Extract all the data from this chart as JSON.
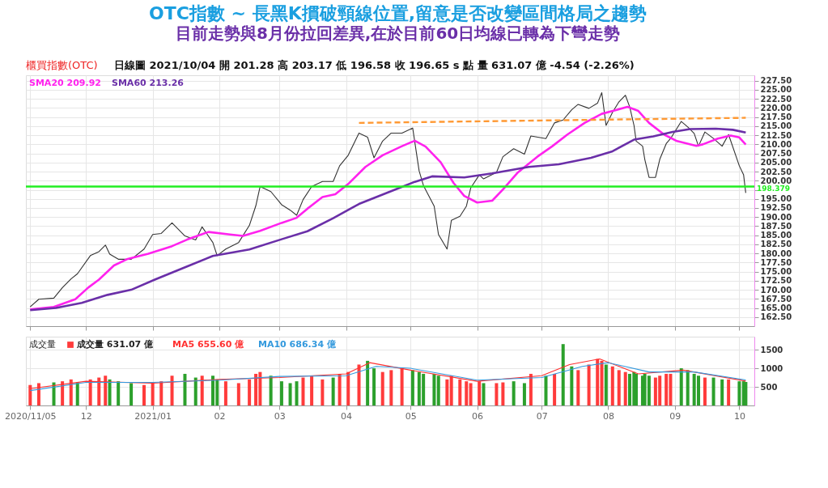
{
  "chart_data": [
    {
      "type": "line",
      "title": "OTC指數 ~ 長黑K摜破頸線位置,留意是否改變區間格局之趨勢",
      "subtitle": "目前走勢與8月份拉回差異,在於目前60日均線已轉為下彎走勢",
      "annotations": [
        "櫃買指數(OTC)",
        "日線圖 2021/10/04 開 201.28 高 203.17 低 196.58 收 196.65 s 點 量 631.07 億 -4.54 (-2.26%)"
      ],
      "xlim": [
        "2020-11-03",
        "2021-10-08"
      ],
      "xticks": [
        {
          "value": "2020-11-05",
          "label": null
        },
        {
          "value": "2020-12-01",
          "label": null
        },
        {
          "value": "2021-01-01",
          "label": null
        },
        {
          "value": "2021-02-01",
          "label": null
        },
        {
          "value": "2021-03-01",
          "label": null
        },
        {
          "value": "2021-04-01",
          "label": null
        },
        {
          "value": "2021-05-01",
          "label": null
        },
        {
          "value": "2021-06-01",
          "label": null
        },
        {
          "value": "2021-07-01",
          "label": null
        },
        {
          "value": "2021-08-01",
          "label": null
        },
        {
          "value": "2021-09-01",
          "label": null
        },
        {
          "value": "2021-10-01",
          "label": null
        }
      ],
      "ylim": [
        160,
        229
      ],
      "yticks": [
        {
          "value": 162.5,
          "label": "162.50"
        },
        {
          "value": 165,
          "label": "165.00"
        },
        {
          "value": 167.5,
          "label": "167.50"
        },
        {
          "value": 170,
          "label": "170.00"
        },
        {
          "value": 172.5,
          "label": "172.50"
        },
        {
          "value": 175,
          "label": "175.00"
        },
        {
          "value": 177.5,
          "label": "177.50"
        },
        {
          "value": 180,
          "label": "180.00"
        },
        {
          "value": 182.5,
          "label": "182.50"
        },
        {
          "value": 185,
          "label": "185.00"
        },
        {
          "value": 187.5,
          "label": "187.50"
        },
        {
          "value": 190,
          "label": "190.00"
        },
        {
          "value": 192.5,
          "label": "192.50"
        },
        {
          "value": 195,
          "label": "195.00"
        },
        {
          "value": 197.5,
          "label": null
        },
        {
          "value": 200,
          "label": "200.00"
        },
        {
          "value": 202.5,
          "label": "202.50"
        },
        {
          "value": 205,
          "label": "205.00"
        },
        {
          "value": 207.5,
          "label": "207.50"
        },
        {
          "value": 210,
          "label": "210.00"
        },
        {
          "value": 212.5,
          "label": "212.50"
        },
        {
          "value": 215,
          "label": "215.00"
        },
        {
          "value": 217.5,
          "label": "217.50"
        },
        {
          "value": 220,
          "label": "220.00"
        },
        {
          "value": 222.5,
          "label": "222.50"
        },
        {
          "value": 225,
          "label": "225.00"
        },
        {
          "value": 227.5,
          "label": "227.50"
        }
      ],
      "tick_labels": "y",
      "grid": true,
      "legend": "top left",
      "ref_lines": [
        {
          "axis": "y",
          "value": 198.379,
          "label": "198.379",
          "color": "#22ee22"
        }
      ],
      "series": [
        {
          "color": "#333333",
          "x": [
            "2020-11-05",
            "2020-11-09",
            "2020-11-16",
            "2020-11-20",
            "2020-11-24",
            "2020-11-27",
            "2020-12-03",
            "2020-12-07",
            "2020-12-10",
            "2020-12-12",
            "2020-12-16",
            "2020-12-22",
            "2020-12-28",
            "2021-01-01",
            "2021-01-05",
            "2021-01-10",
            "2021-01-16",
            "2021-01-21",
            "2021-01-24",
            "2021-01-29",
            "2021-01-31",
            "2021-02-04",
            "2021-02-10",
            "2021-02-15",
            "2021-02-18",
            "2021-02-20",
            "2021-02-25",
            "2021-03-02",
            "2021-03-06",
            "2021-03-09",
            "2021-03-12",
            "2021-03-16",
            "2021-03-21",
            "2021-03-26",
            "2021-03-29",
            "2021-04-02",
            "2021-04-07",
            "2021-04-11",
            "2021-04-14",
            "2021-04-18",
            "2021-04-22",
            "2021-04-27",
            "2021-05-02",
            "2021-05-05",
            "2021-05-07",
            "2021-05-12",
            "2021-05-14",
            "2021-05-18",
            "2021-05-20",
            "2021-05-24",
            "2021-05-27",
            "2021-05-29",
            "2021-06-02",
            "2021-06-04",
            "2021-06-10",
            "2021-06-13",
            "2021-06-18",
            "2021-06-23",
            "2021-06-26",
            "2021-07-03",
            "2021-07-07",
            "2021-07-11",
            "2021-07-15",
            "2021-07-18",
            "2021-07-23",
            "2021-07-27",
            "2021-07-29",
            "2021-07-31",
            "2021-08-03",
            "2021-08-06",
            "2021-08-09",
            "2021-08-11",
            "2021-08-13",
            "2021-08-14",
            "2021-08-17",
            "2021-08-18",
            "2021-08-20",
            "2021-08-23",
            "2021-08-25",
            "2021-08-28",
            "2021-08-30",
            "2021-09-04",
            "2021-09-07",
            "2021-09-10",
            "2021-09-12",
            "2021-09-15",
            "2021-09-19",
            "2021-09-23",
            "2021-09-26",
            "2021-10-01",
            "2021-10-03",
            "2021-10-04"
          ],
          "values": [
            165.3,
            167.4,
            167.7,
            170.6,
            173.0,
            174.4,
            179.4,
            180.5,
            182.3,
            179.8,
            178.4,
            178.4,
            181.2,
            185.2,
            185.5,
            188.4,
            184.8,
            183.7,
            187.3,
            183.0,
            179.4,
            181.2,
            183.0,
            187.7,
            193.1,
            198.4,
            197.0,
            193.4,
            191.9,
            190.5,
            194.8,
            198.4,
            199.8,
            199.8,
            204.1,
            207.0,
            213.1,
            212.0,
            206.3,
            210.9,
            213.1,
            213.1,
            214.5,
            202.7,
            198.7,
            193.0,
            185.2,
            181.2,
            189.1,
            190.2,
            193.0,
            198.0,
            201.6,
            200.5,
            202.3,
            206.6,
            208.8,
            207.3,
            212.3,
            211.6,
            215.9,
            216.7,
            219.5,
            221.0,
            219.9,
            221.3,
            224.2,
            215.2,
            218.8,
            221.7,
            223.5,
            220.3,
            215.2,
            210.9,
            209.5,
            205.9,
            200.9,
            200.9,
            205.9,
            210.2,
            211.6,
            216.3,
            214.8,
            213.0,
            209.5,
            213.4,
            211.6,
            209.5,
            212.7,
            204.1,
            201.6,
            196.65
          ]
        },
        {
          "name": "SMA20 209.92",
          "color": "#ff22ee",
          "x": [
            "2020-11-05",
            "2020-11-16",
            "2020-11-26",
            "2020-12-02",
            "2020-12-07",
            "2020-12-14",
            "2020-12-20",
            "2020-12-30",
            "2021-01-10",
            "2021-01-17",
            "2021-01-27",
            "2021-02-06",
            "2021-02-12",
            "2021-02-20",
            "2021-03-02",
            "2021-03-09",
            "2021-03-14",
            "2021-03-21",
            "2021-03-27",
            "2021-04-02",
            "2021-04-10",
            "2021-04-18",
            "2021-04-27",
            "2021-05-03",
            "2021-05-08",
            "2021-05-15",
            "2021-05-21",
            "2021-05-26",
            "2021-06-01",
            "2021-06-08",
            "2021-06-13",
            "2021-06-20",
            "2021-06-29",
            "2021-07-06",
            "2021-07-13",
            "2021-07-21",
            "2021-07-29",
            "2021-08-05",
            "2021-08-10",
            "2021-08-15",
            "2021-08-20",
            "2021-08-27",
            "2021-09-02",
            "2021-09-11",
            "2021-09-14",
            "2021-09-21",
            "2021-09-27",
            "2021-10-01",
            "2021-10-04"
          ],
          "values": [
            164.6,
            165.3,
            167.4,
            170.6,
            172.8,
            176.7,
            178.4,
            179.9,
            182.0,
            183.8,
            185.9,
            185.2,
            184.8,
            186.2,
            188.4,
            189.8,
            192.3,
            195.5,
            196.3,
            199.1,
            203.8,
            207.0,
            209.5,
            211.0,
            209.4,
            205.1,
            199.4,
            195.8,
            194.0,
            194.5,
            197.6,
            202.3,
            206.6,
            209.5,
            212.7,
            215.9,
            218.4,
            219.5,
            220.3,
            219.2,
            215.9,
            212.7,
            210.9,
            209.6,
            210.0,
            211.6,
            212.4,
            211.9,
            209.92
          ]
        },
        {
          "name": "SMA60 213.26",
          "color": "#6a2fa8",
          "x": [
            "2020-11-05",
            "2020-11-17",
            "2020-11-29",
            "2020-12-11",
            "2020-12-22",
            "2021-01-02",
            "2021-01-17",
            "2021-01-29",
            "2021-02-15",
            "2021-03-02",
            "2021-03-14",
            "2021-03-26",
            "2021-04-07",
            "2021-04-21",
            "2021-05-03",
            "2021-05-11",
            "2021-05-26",
            "2021-06-08",
            "2021-06-25",
            "2021-07-09",
            "2021-07-24",
            "2021-08-03",
            "2021-08-13",
            "2021-08-22",
            "2021-08-31",
            "2021-09-08",
            "2021-09-20",
            "2021-09-28",
            "2021-10-04"
          ],
          "values": [
            164.4,
            165.0,
            166.4,
            168.6,
            170.0,
            172.8,
            176.4,
            179.3,
            181.1,
            183.9,
            186.1,
            189.7,
            193.6,
            196.9,
            199.7,
            201.2,
            200.9,
            202.0,
            203.8,
            204.5,
            206.3,
            208.1,
            211.3,
            212.2,
            213.4,
            214.2,
            214.3,
            214.0,
            213.26
          ]
        },
        {
          "color": "#ff9933",
          "line_style": "dashed",
          "x": [
            "2021-04-07",
            "2021-10-04"
          ],
          "values": [
            215.9,
            217.3
          ]
        }
      ]
    },
    {
      "type": "bar",
      "annotations": [
        "成交量"
      ],
      "xlim": [
        "2020-11-03",
        "2021-10-08"
      ],
      "xticks": [
        {
          "value": "2020-11-05",
          "label": "2020/11/05"
        },
        {
          "value": "2020-12-01",
          "label": "12"
        },
        {
          "value": "2021-01-01",
          "label": "2021/01"
        },
        {
          "value": "2021-02-01",
          "label": "02"
        },
        {
          "value": "2021-03-01",
          "label": "03"
        },
        {
          "value": "2021-04-01",
          "label": "04"
        },
        {
          "value": "2021-05-01",
          "label": "05"
        },
        {
          "value": "2021-06-01",
          "label": "06"
        },
        {
          "value": "2021-07-01",
          "label": "07"
        },
        {
          "value": "2021-08-01",
          "label": "08"
        },
        {
          "value": "2021-09-01",
          "label": "09"
        },
        {
          "value": "2021-10-01",
          "label": "10"
        }
      ],
      "ylim": [
        0,
        1850
      ],
      "yticks": [
        500,
        1000,
        1500
      ],
      "grid": true,
      "legend": "top left",
      "x": [
        "2020-11-05",
        "2020-11-09",
        "2020-11-16",
        "2020-11-20",
        "2020-11-24",
        "2020-11-27",
        "2020-12-03",
        "2020-12-07",
        "2020-12-10",
        "2020-12-12",
        "2020-12-16",
        "2020-12-22",
        "2020-12-28",
        "2021-01-01",
        "2021-01-05",
        "2021-01-10",
        "2021-01-16",
        "2021-01-21",
        "2021-01-24",
        "2021-01-29",
        "2021-01-31",
        "2021-02-04",
        "2021-02-10",
        "2021-02-15",
        "2021-02-18",
        "2021-02-20",
        "2021-02-25",
        "2021-03-02",
        "2021-03-06",
        "2021-03-09",
        "2021-03-12",
        "2021-03-16",
        "2021-03-21",
        "2021-03-26",
        "2021-03-29",
        "2021-04-02",
        "2021-04-07",
        "2021-04-11",
        "2021-04-14",
        "2021-04-18",
        "2021-04-22",
        "2021-04-27",
        "2021-05-02",
        "2021-05-05",
        "2021-05-07",
        "2021-05-12",
        "2021-05-14",
        "2021-05-18",
        "2021-05-20",
        "2021-05-24",
        "2021-05-27",
        "2021-05-29",
        "2021-06-02",
        "2021-06-04",
        "2021-06-10",
        "2021-06-13",
        "2021-06-18",
        "2021-06-23",
        "2021-06-26",
        "2021-07-03",
        "2021-07-07",
        "2021-07-11",
        "2021-07-15",
        "2021-07-18",
        "2021-07-23",
        "2021-07-27",
        "2021-07-29",
        "2021-07-31",
        "2021-08-03",
        "2021-08-06",
        "2021-08-09",
        "2021-08-11",
        "2021-08-13",
        "2021-08-14",
        "2021-08-17",
        "2021-08-18",
        "2021-08-20",
        "2021-08-23",
        "2021-08-25",
        "2021-08-28",
        "2021-08-30",
        "2021-09-04",
        "2021-09-07",
        "2021-09-10",
        "2021-09-12",
        "2021-09-15",
        "2021-09-19",
        "2021-09-23",
        "2021-09-26",
        "2021-10-01",
        "2021-10-03",
        "2021-10-04"
      ],
      "series": [
        {
          "name": "成交量 631.07 億",
          "values": [
            550,
            600,
            620,
            650,
            700,
            620,
            700,
            750,
            800,
            700,
            650,
            600,
            550,
            600,
            650,
            800,
            850,
            750,
            800,
            800,
            700,
            650,
            600,
            700,
            850,
            900,
            800,
            650,
            600,
            650,
            750,
            800,
            700,
            750,
            850,
            900,
            1100,
            1200,
            1000,
            900,
            950,
            1000,
            950,
            900,
            850,
            850,
            800,
            700,
            800,
            700,
            650,
            600,
            650,
            600,
            600,
            620,
            650,
            600,
            850,
            800,
            850,
            1650,
            1050,
            950,
            1100,
            1250,
            1200,
            1100,
            1050,
            950,
            900,
            850,
            900,
            850,
            800,
            850,
            800,
            750,
            800,
            850,
            850,
            1000,
            950,
            850,
            800,
            750,
            750,
            700,
            700,
            650,
            650,
            631.07
          ],
          "colors": [
            "#ff3b3b",
            "#ff3b3b",
            "#2ca02c",
            "#ff3b3b",
            "#ff3b3b",
            "#2ca02c",
            "#ff3b3b",
            "#ff3b3b",
            "#ff3b3b",
            "#2ca02c",
            "#2ca02c",
            "#2ca02c",
            "#ff3b3b",
            "#ff3b3b",
            "#ff3b3b",
            "#ff3b3b",
            "#2ca02c",
            "#2ca02c",
            "#ff3b3b",
            "#2ca02c",
            "#2ca02c",
            "#ff3b3b",
            "#ff3b3b",
            "#ff3b3b",
            "#ff3b3b",
            "#ff3b3b",
            "#2ca02c",
            "#2ca02c",
            "#2ca02c",
            "#2ca02c",
            "#ff3b3b",
            "#ff3b3b",
            "#ff3b3b",
            "#2ca02c",
            "#ff3b3b",
            "#ff3b3b",
            "#ff3b3b",
            "#2ca02c",
            "#2ca02c",
            "#ff3b3b",
            "#ff3b3b",
            "#ff3b3b",
            "#2ca02c",
            "#2ca02c",
            "#2ca02c",
            "#2ca02c",
            "#2ca02c",
            "#ff3b3b",
            "#ff3b3b",
            "#ff3b3b",
            "#ff3b3b",
            "#ff3b3b",
            "#ff3b3b",
            "#2ca02c",
            "#ff3b3b",
            "#ff3b3b",
            "#2ca02c",
            "#2ca02c",
            "#ff3b3b",
            "#2ca02c",
            "#ff3b3b",
            "#2ca02c",
            "#2ca02c",
            "#ff3b3b",
            "#ff3b3b",
            "#ff3b3b",
            "#ff3b3b",
            "#2ca02c",
            "#ff3b3b",
            "#ff3b3b",
            "#ff3b3b",
            "#2ca02c",
            "#2ca02c",
            "#2ca02c",
            "#2ca02c",
            "#2ca02c",
            "#2ca02c",
            "#ff3b3b",
            "#ff3b3b",
            "#ff3b3b",
            "#ff3b3b",
            "#2ca02c",
            "#2ca02c",
            "#2ca02c",
            "#2ca02c",
            "#ff3b3b",
            "#2ca02c",
            "#2ca02c",
            "#ff3b3b",
            "#2ca02c",
            "#2ca02c",
            "#2ca02c"
          ]
        },
        {
          "name": "MA5 655.60 億",
          "type": "line",
          "color": "#ff3030",
          "x": [
            "2020-11-05",
            "2020-12-01",
            "2021-01-01",
            "2021-02-01",
            "2021-03-01",
            "2021-04-01",
            "2021-04-12",
            "2021-05-01",
            "2021-06-01",
            "2021-07-01",
            "2021-07-14",
            "2021-07-28",
            "2021-08-15",
            "2021-09-05",
            "2021-10-04"
          ],
          "values": [
            450,
            650,
            600,
            700,
            750,
            850,
            1150,
            950,
            650,
            800,
            1100,
            1250,
            850,
            950,
            655.6
          ]
        },
        {
          "name": "MA10 686.34 億",
          "type": "line",
          "color": "#3399dd",
          "x": [
            "2020-11-05",
            "2020-12-01",
            "2021-01-01",
            "2021-02-01",
            "2021-03-01",
            "2021-04-01",
            "2021-04-15",
            "2021-05-01",
            "2021-06-01",
            "2021-07-01",
            "2021-07-20",
            "2021-08-01",
            "2021-08-20",
            "2021-09-10",
            "2021-10-04"
          ],
          "values": [
            400,
            620,
            620,
            680,
            780,
            800,
            1050,
            1000,
            680,
            750,
            1050,
            1150,
            900,
            900,
            686.34
          ]
        }
      ]
    }
  ]
}
